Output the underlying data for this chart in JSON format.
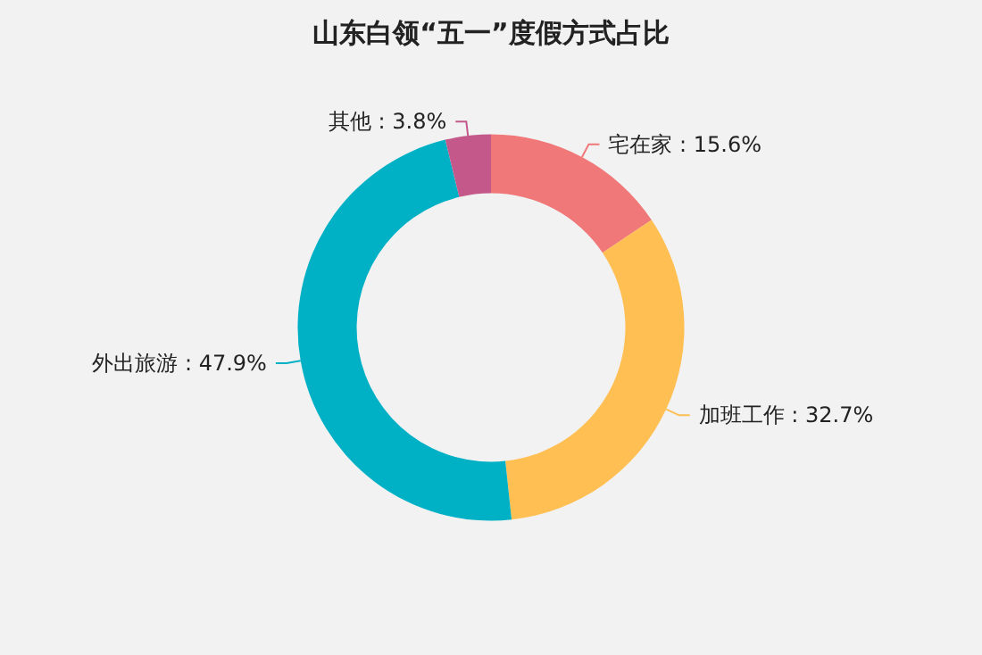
{
  "chart_data": {
    "type": "donut",
    "title": "山东白领“五一”度假方式占比",
    "categories": [
      "宅在家",
      "加班工作",
      "外出旅游",
      "其他"
    ],
    "values": [
      15.6,
      32.7,
      47.9,
      3.8
    ],
    "value_labels": [
      "15.6%",
      "32.7%",
      "47.9%",
      "3.8%"
    ],
    "colors": [
      "#f07878",
      "#ffbf52",
      "#00b1c6",
      "#c4588a"
    ],
    "legend": false
  }
}
